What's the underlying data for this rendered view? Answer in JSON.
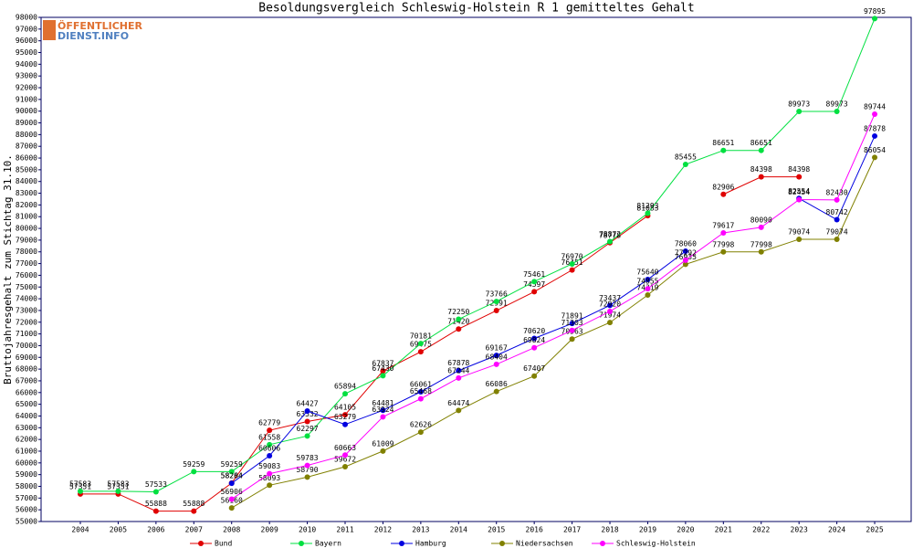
{
  "logo": {
    "line1": "ÖFFENTLICHER",
    "line2": "DIENST.INFO"
  },
  "chart_data": {
    "type": "line",
    "title": "Besoldungsvergleich Schleswig-Holstein R 1 gemitteltes Gehalt",
    "y_label": "Bruttojahresgehalt zum Stichtag 31.10.",
    "categories": [
      "2004",
      "2005",
      "2006",
      "2007",
      "2008",
      "2009",
      "2010",
      "2011",
      "2012",
      "2013",
      "2014",
      "2015",
      "2016",
      "2017",
      "2018",
      "2019",
      "2020",
      "2021",
      "2022",
      "2023",
      "2024",
      "2025"
    ],
    "ylim": [
      55000,
      98000
    ],
    "yticks": [
      55000,
      56000,
      57000,
      58000,
      59000,
      60000,
      61000,
      62000,
      63000,
      64000,
      65000,
      66000,
      67000,
      68000,
      69000,
      70000,
      71000,
      72000,
      73000,
      74000,
      75000,
      76000,
      77000,
      78000,
      79000,
      80000,
      81000,
      82000,
      83000,
      84000,
      85000,
      86000,
      87000,
      88000,
      89000,
      90000,
      91000,
      92000,
      93000,
      94000,
      95000,
      96000,
      97000,
      98000
    ],
    "series": [
      {
        "name": "Bund",
        "color": "#e00000",
        "values": [
          57351,
          57351,
          55888,
          55888,
          58284,
          62779,
          63532,
          64105,
          67837,
          69475,
          71420,
          72991,
          74597,
          76451,
          78778,
          81083,
          null,
          82906,
          84398,
          84398,
          null,
          null
        ]
      },
      {
        "name": "Bayern",
        "color": "#00e040",
        "values": [
          57583,
          57583,
          57533,
          59259,
          59259,
          61558,
          62297,
          65894,
          67430,
          70181,
          72250,
          73766,
          75461,
          76970,
          78872,
          81293,
          85455,
          86651,
          86651,
          89973,
          89973,
          97895
        ]
      },
      {
        "name": "Hamburg",
        "color": "#0000e0",
        "values": [
          null,
          null,
          null,
          null,
          58264,
          60606,
          64427,
          63279,
          64481,
          66061,
          67878,
          69167,
          70620,
          71891,
          73437,
          75640,
          78060,
          null,
          null,
          82554,
          80742,
          87878
        ]
      },
      {
        "name": "Niedersachsen",
        "color": "#808000",
        "values": [
          null,
          null,
          null,
          null,
          56160,
          58093,
          58790,
          59672,
          61009,
          62626,
          64474,
          66086,
          67407,
          70563,
          71974,
          74319,
          76935,
          77998,
          77998,
          79074,
          79074,
          86054
        ]
      },
      {
        "name": "Schleswig-Holstein",
        "color": "#ff00ff",
        "values": [
          null,
          null,
          null,
          null,
          56906,
          59083,
          59783,
          60663,
          63924,
          65468,
          67244,
          68404,
          69824,
          71303,
          72920,
          74855,
          77292,
          79617,
          80090,
          82454,
          82430,
          89744
        ]
      }
    ]
  }
}
